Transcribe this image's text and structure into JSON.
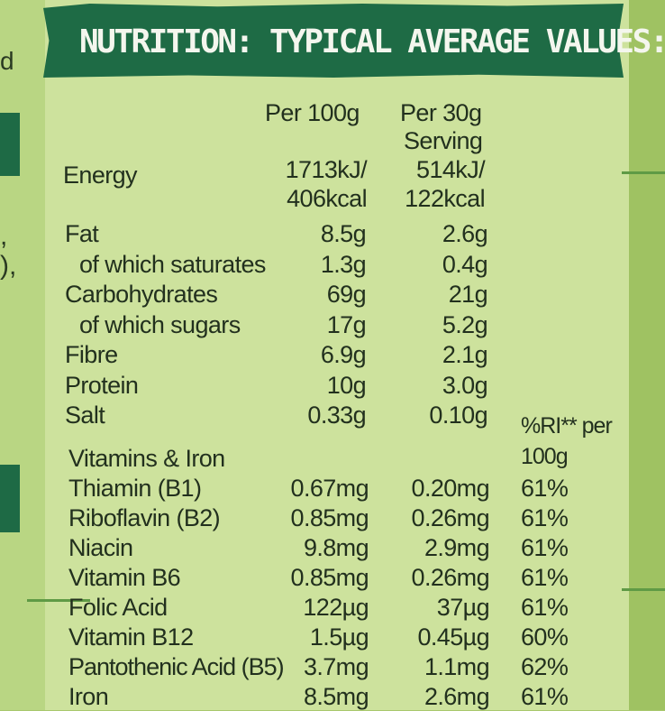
{
  "side_fragments": {
    "letter": "d",
    "comma1": ",",
    "comma2": "),"
  },
  "title": "NUTRITION: TYPICAL AVERAGE VALUES:",
  "headers": {
    "per100": "Per 100g",
    "per30_line1": "Per 30g",
    "per30_line2": "Serving",
    "ri_line1": "%RI** per",
    "ri_line2": "100g"
  },
  "energy": {
    "label": "Energy",
    "per100_kj": "1713kJ/",
    "per100_kcal": "406kcal",
    "per30_kj": "514kJ/",
    "per30_kcal": "122kcal"
  },
  "nutrients": [
    {
      "label": "Fat",
      "per100": "8.5g",
      "per30": "2.6g"
    },
    {
      "label": "of which saturates",
      "per100": "1.3g",
      "per30": "0.4g"
    },
    {
      "label": "Carbohydrates",
      "per100": "69g",
      "per30": "21g"
    },
    {
      "label": "of which sugars",
      "per100": "17g",
      "per30": "5.2g"
    },
    {
      "label": "Fibre",
      "per100": "6.9g",
      "per30": "2.1g"
    },
    {
      "label": "Protein",
      "per100": "10g",
      "per30": "3.0g"
    },
    {
      "label": "Salt",
      "per100": "0.33g",
      "per30": "0.10g"
    }
  ],
  "vitamins_heading": "Vitamins & Iron",
  "vitamins": [
    {
      "label": "Thiamin (B1)",
      "per100": "0.67mg",
      "per30": "0.20mg",
      "ri": "61%"
    },
    {
      "label": "Riboflavin (B2)",
      "per100": "0.85mg",
      "per30": "0.26mg",
      "ri": "61%"
    },
    {
      "label": "Niacin",
      "per100": "9.8mg",
      "per30": "2.9mg",
      "ri": "61%"
    },
    {
      "label": "Vitamin B6",
      "per100": "0.85mg",
      "per30": "0.26mg",
      "ri": "61%"
    },
    {
      "label": "Folic Acid",
      "per100": "122µg",
      "per30": "37µg",
      "ri": "61%"
    },
    {
      "label": "Vitamin B12",
      "per100": "1.5µg",
      "per30": "0.45µg",
      "ri": "60%"
    },
    {
      "label": "Pantothenic Acid (B5)",
      "per100": "3.7mg",
      "per30": "1.1mg",
      "ri": "62%"
    },
    {
      "label": "Iron",
      "per100": "8.5mg",
      "per30": "2.6mg",
      "ri": "61%"
    }
  ]
}
